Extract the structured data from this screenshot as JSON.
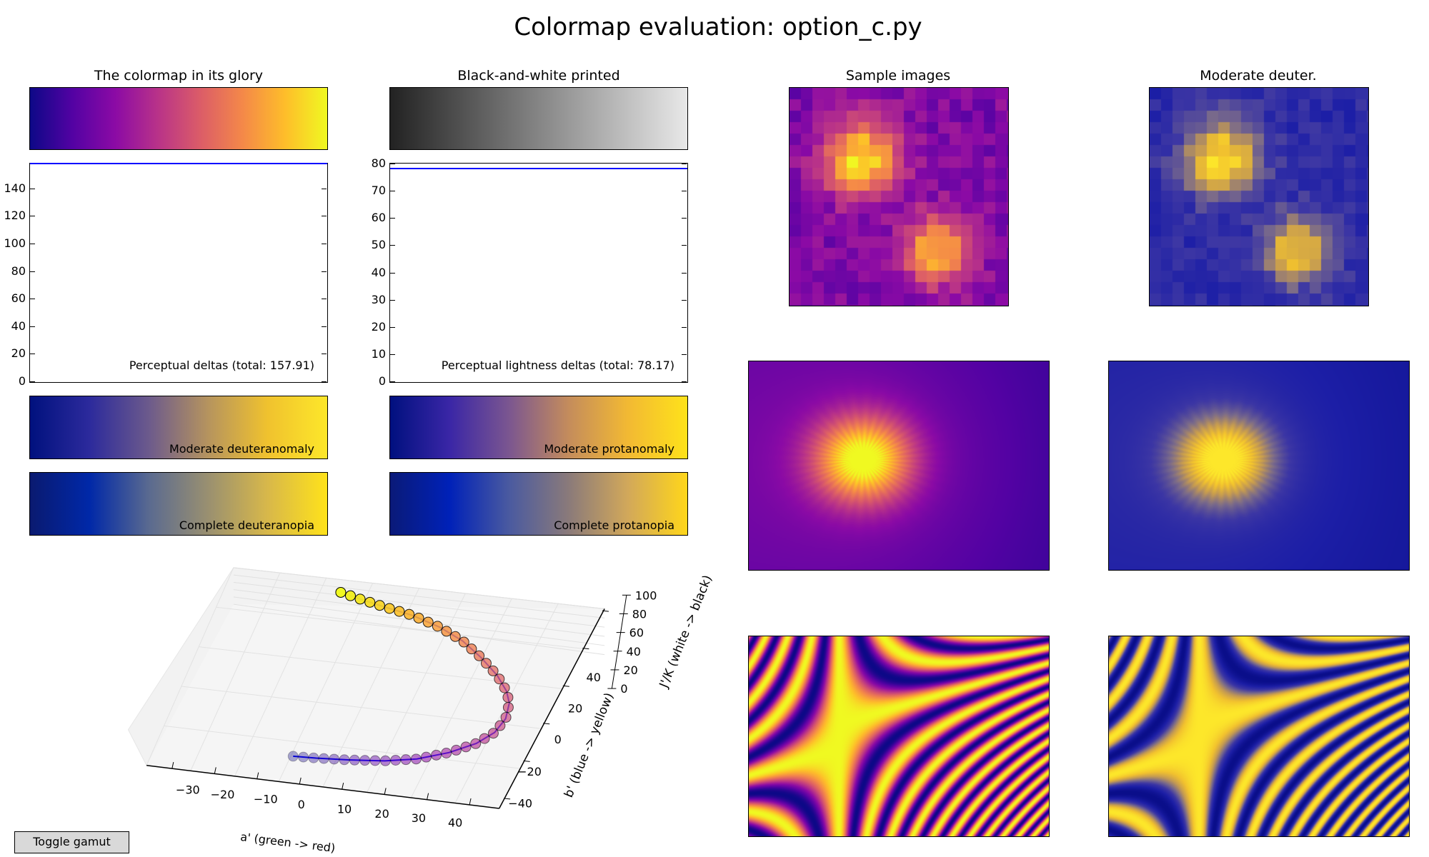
{
  "title": "Colormap evaluation: option_c.py",
  "panels": {
    "glory_title": "The colormap in its glory",
    "bw_title": "Black-and-white printed",
    "samples_title": "Sample images",
    "deuter_title": "Moderate deuter."
  },
  "bars": {
    "glory": {
      "colors": [
        "#0d0887",
        "#5302a3",
        "#8b0aa5",
        "#b83289",
        "#db5c68",
        "#f48849",
        "#febd2a",
        "#f0f921"
      ]
    },
    "bw": {
      "colors": [
        "#222222",
        "#e8e8e8"
      ]
    },
    "mod_deuteranomaly": {
      "label": "Moderate deuteranomaly",
      "colors": [
        "#00117e",
        "#2c2a9c",
        "#6c5a8c",
        "#b6945e",
        "#f0c22e",
        "#fde72a"
      ]
    },
    "mod_protanomaly": {
      "label": "Moderate protanomaly",
      "colors": [
        "#00107f",
        "#3a26a6",
        "#7b5690",
        "#c48c5c",
        "#f2b933",
        "#fee21a"
      ]
    },
    "complete_deuteranopia": {
      "label": "Complete deuteranopia",
      "colors": [
        "#0a1a70",
        "#0028a8",
        "#5a6a90",
        "#9a9070",
        "#d8b84a",
        "#ffe21a"
      ]
    },
    "complete_protanopia": {
      "label": "Complete protanopia",
      "colors": [
        "#0a1a78",
        "#0021b8",
        "#4a5aa0",
        "#8a7a7a",
        "#d2a85a",
        "#ffd61a"
      ]
    }
  },
  "chart_data": [
    {
      "type": "line",
      "label": "Perceptual deltas (total: 157.91)",
      "ylim": [
        0,
        158
      ],
      "yticks": [
        0,
        20,
        40,
        60,
        80,
        100,
        120,
        140
      ],
      "y_constant": 157.91,
      "line_color": "#0000ff"
    },
    {
      "type": "line",
      "label": "Perceptual lightness deltas (total: 78.17)",
      "ylim": [
        0,
        80
      ],
      "yticks": [
        0,
        10,
        20,
        30,
        40,
        50,
        60,
        70,
        80
      ],
      "y_constant": 78.17,
      "line_color": "#0000ff"
    },
    {
      "type": "scatter",
      "projection": "3d",
      "xlabel": "a' (green -> red)",
      "ylabel": "b' (blue -> yellow)",
      "zlabel": "J'/K (white -> black)",
      "xticks": [
        "−30",
        "−20",
        "−10",
        "0",
        "10",
        "20",
        "30",
        "40"
      ],
      "yticks": [
        "−40",
        "−20",
        "0",
        "20",
        "40"
      ],
      "zticks": [
        "0",
        "20",
        "40",
        "60",
        "80",
        "100"
      ],
      "point_count": 45
    }
  ],
  "toggle_button": {
    "label": "Toggle gamut"
  }
}
